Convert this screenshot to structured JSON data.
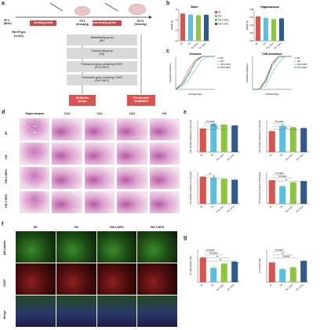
{
  "panel_a": {
    "letter": "a",
    "timeline": [
      "PD 0\n(Birth)",
      "PD 5\n(Grouping)",
      "PD 21\n(Weaning)"
    ],
    "pd0": "PD 0",
    "pd0_sub": "(Birth)",
    "pd5": "PD 5",
    "pd5_sub": "(Grouping)",
    "pd21": "PD 21",
    "pd21_sub": "(Weaning)",
    "suckling": "Suckling period",
    "formula": "Formula feeding period",
    "rat_pups": "Rat Pups",
    "rat_n": "(n=40)",
    "groups": [
      "Breastfeeding group\n(BF)",
      "Formula milk group\n(FM)",
      "Formula-fed group containing S-MFG\n(FM-S-MFG)",
      "Formula-fed group containing T-MFG\n(FM-T-MFG)"
    ],
    "g1": "Breastfeeding group",
    "g1b": "(BF)",
    "g2": "Formula milk group",
    "g2b": "(FM)",
    "g3": "Formula-fed group containing S-MFG",
    "g3b": "(FM-S-MFG)",
    "g4": "Formula-fed group containing T-MFG",
    "g4b": "(FM-T-MFG)",
    "divide_l1": "Divide into",
    "divide_l2": "groups",
    "sac_l1": "The rats were",
    "sac_l2": "decapitated",
    "colors": {
      "suckling": "#c0504d",
      "formula": "#c0504d",
      "box": "#d9d9d9",
      "red_box": "#d9534f"
    }
  },
  "panel_b": {
    "letter": "b",
    "chart_data": [
      {
        "type": "bar",
        "title": "Brain",
        "categories": [
          "BF",
          "FM",
          "FM-S-MFG",
          "FM-T-MFG"
        ],
        "values": [
          1.3,
          1.25,
          1.22,
          1.24
        ],
        "ylabel": "Weight (g)",
        "ylim": [
          0,
          1.5
        ],
        "yticks": [
          "0.0",
          "0.5",
          "1.0",
          "1.5"
        ]
      },
      {
        "type": "bar",
        "title": "Hippocampus",
        "categories": [
          "BF",
          "FM",
          "FM-S-MFG",
          "FM-T-MFG"
        ],
        "values": [
          0.062,
          0.058,
          0.055,
          0.057
        ],
        "ylabel": "Weight (g)",
        "ylim": [
          0,
          0.08
        ],
        "yticks": [
          "0.00",
          "0.02",
          "0.04",
          "0.06",
          "0.08"
        ]
      }
    ],
    "legend": [
      "BF",
      "FM",
      "FM-S-MFG",
      "FM-T-MFG"
    ]
  },
  "panel_c": {
    "letter": "c",
    "chart_data": [
      {
        "type": "line",
        "title": "Geotaxis",
        "xlabel": "Postnatal days",
        "ylabel": "Cumulative frequency",
        "x": [
          6,
          7,
          8,
          9,
          10,
          11,
          12
        ],
        "series": [
          {
            "name": "BF",
            "values": [
              0,
              0.2,
              0.6,
              0.9,
              1.0,
              1.0,
              1.0
            ]
          },
          {
            "name": "FM",
            "values": [
              0,
              0.1,
              0.3,
              0.6,
              0.9,
              1.0,
              1.0
            ]
          },
          {
            "name": "FM-S-MFG",
            "values": [
              0,
              0.15,
              0.5,
              0.8,
              1.0,
              1.0,
              1.0
            ]
          },
          {
            "name": "FM-T-MFG",
            "values": [
              0,
              0.15,
              0.45,
              0.85,
              1.0,
              1.0,
              1.0
            ]
          }
        ],
        "ylim": [
          0,
          1
        ]
      },
      {
        "type": "line",
        "title": "Cliff avoidance",
        "xlabel": "Postnatal days",
        "ylabel": "Cumulative frequency",
        "x": [
          6,
          7,
          8,
          9,
          10,
          11,
          12
        ],
        "series": [
          {
            "name": "BF",
            "values": [
              0,
              0,
              0.3,
              0.8,
              1.0,
              1.0,
              1.0
            ]
          },
          {
            "name": "FM",
            "values": [
              0,
              0,
              0.1,
              0.5,
              0.8,
              1.0,
              1.0
            ]
          },
          {
            "name": "FM-S-MFG",
            "values": [
              0,
              0,
              0.2,
              0.7,
              0.95,
              1.0,
              1.0
            ]
          },
          {
            "name": "FM-T-MFG",
            "values": [
              0,
              0,
              0.25,
              0.75,
              1.0,
              1.0,
              1.0
            ]
          }
        ],
        "ylim": [
          0,
          1
        ]
      }
    ]
  },
  "panel_d": {
    "letter": "d",
    "columns": [
      "Hippocampus",
      "CA1",
      "CA2",
      "CA3",
      "DG"
    ],
    "rows": [
      "BF",
      "FM",
      "FM-S-MFG",
      "FM-T-MFG"
    ],
    "region_labels": [
      "CA1",
      "CA2",
      "CA3",
      "DG"
    ]
  },
  "panel_e": {
    "letter": "e",
    "chart_data": [
      {
        "type": "bar",
        "categories": [
          "BF",
          "FM",
          "FM-S-MFG",
          "FM-T-MFG"
        ],
        "values": [
          150,
          180,
          175,
          170
        ],
        "ylabel": "The cell layer thickness of CA1 (μm)",
        "ylim": [
          0,
          200
        ],
        "annotations": [
          "P=0.0448",
          "ns",
          "ns"
        ]
      },
      {
        "type": "bar",
        "categories": [
          "BF",
          "FM",
          "FM-S-MFG",
          "FM-T-MFG"
        ],
        "values": [
          80,
          100,
          95,
          92
        ],
        "ylabel": "The cell layer thickness of CA2 (μm)",
        "ylim": [
          0,
          120
        ],
        "annotations": [
          "P=0.0003",
          "ns",
          "ns"
        ]
      },
      {
        "type": "bar",
        "categories": [
          "BF",
          "FM",
          "FM-S-MFG",
          "FM-T-MFG"
        ],
        "values": [
          130,
          125,
          120,
          115
        ],
        "ylabel": "The cell layer thickness of CA3 (μm)",
        "ylim": [
          0,
          150
        ],
        "annotations": [
          "ns",
          "ns"
        ]
      },
      {
        "type": "bar",
        "categories": [
          "BF",
          "FM",
          "FM-S-MFG",
          "FM-T-MFG"
        ],
        "values": [
          60,
          45,
          55,
          58
        ],
        "ylabel": "The cell layer thickness of DG (μm)",
        "ylim": [
          0,
          80
        ],
        "annotations": [
          "P=0.0003",
          "P=0.0021",
          "ns"
        ]
      }
    ]
  },
  "panel_f": {
    "letter": "f",
    "columns": [
      "BF",
      "FM",
      "FM-S-MFG",
      "FM-T-MFG"
    ],
    "rows": [
      "βIII-tubulin",
      "GFAP",
      "Merge"
    ]
  },
  "panel_g": {
    "letter": "g",
    "chart_data": [
      {
        "type": "bar",
        "categories": [
          "BF",
          "FM",
          "FM-S-MFG",
          "FM-T-MFG"
        ],
        "values": [
          60,
          35,
          45,
          50
        ],
        "ylabel": "% of βIII-tubulin cells",
        "ylim": [
          0,
          80
        ],
        "annotations": [
          "P=0.0414",
          "P=0.0001",
          "ns",
          "ns"
        ]
      },
      {
        "type": "bar",
        "categories": [
          "BF",
          "FM",
          "FM-S-MFG",
          "FM-T-MFG"
        ],
        "values": [
          12,
          8,
          9,
          13
        ],
        "ylabel": "% of GFAP cells",
        "ylim": [
          0,
          20
        ],
        "annotations": [
          "P=0.0027",
          "ns",
          "P=0.033"
        ]
      }
    ]
  },
  "bar_colors": [
    "#d9534f",
    "#5bc0de",
    "#8cc63f",
    "#2e5c8a"
  ]
}
